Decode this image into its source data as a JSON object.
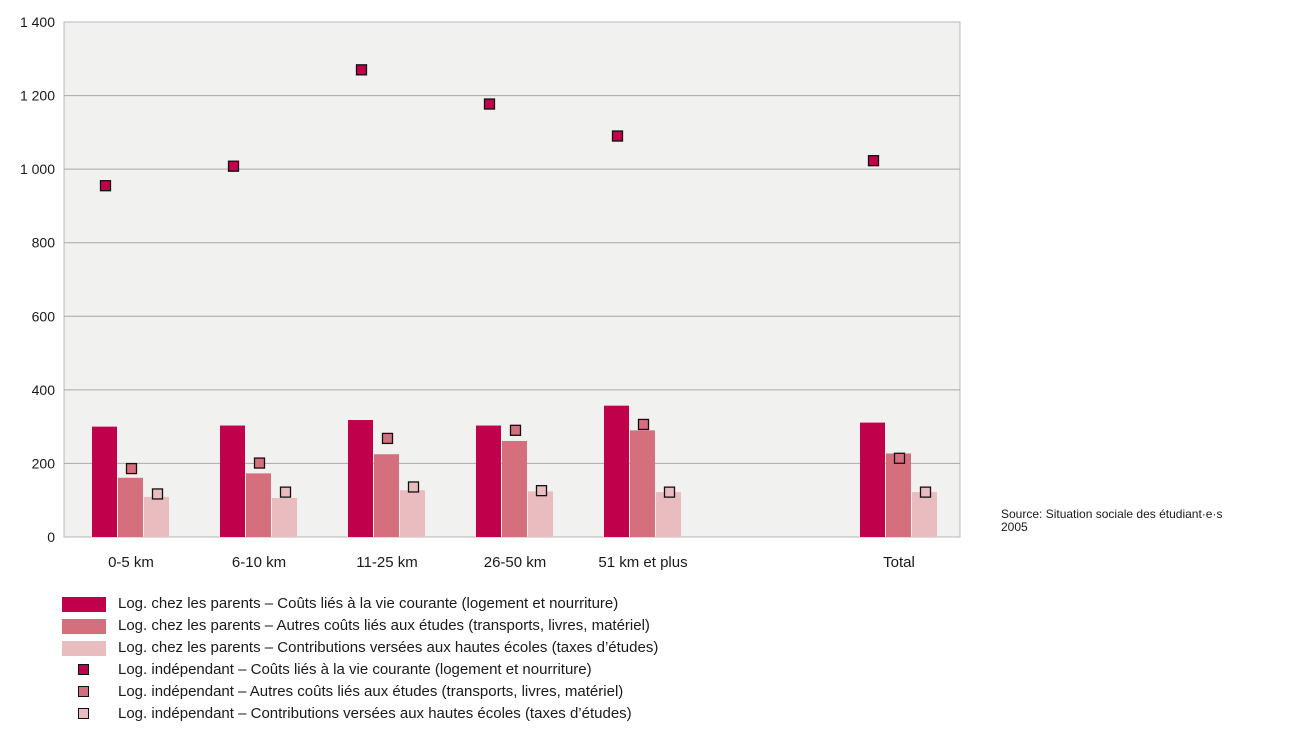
{
  "chart_data": {
    "type": "bar",
    "categories": [
      "0-5 km",
      "6-10 km",
      "11-25 km",
      "26-50 km",
      "51 km et plus",
      "Total"
    ],
    "ylim": [
      0,
      1400
    ],
    "yticks": [
      "0",
      "200",
      "400",
      "600",
      "800",
      "1 000",
      "1 200",
      "1 400"
    ],
    "ytick_values": [
      0,
      200,
      400,
      600,
      800,
      1000,
      1200,
      1400
    ],
    "grid": true,
    "legend_position": "bottom-left",
    "series": [
      {
        "name": "Log. chez les parents  – Coûts liés à la vie courante (logement et nourriture)",
        "kind": "bar",
        "color": "#c0004a",
        "values": [
          300,
          303,
          318,
          303,
          357,
          311
        ]
      },
      {
        "name": "Log. chez les parents – Autres coûts liés aux études (transports, livres, matériel)",
        "kind": "bar",
        "color": "#d4707e",
        "values": [
          161,
          173,
          225,
          261,
          290,
          227
        ]
      },
      {
        "name": "Log. chez les parents – Contributions versées aux hautes écoles (taxes d’études)",
        "kind": "bar",
        "color": "#e9bcc0",
        "values": [
          109,
          106,
          127,
          124,
          122,
          122
        ]
      },
      {
        "name": "Log. indépendant – Coûts liés à la vie courante (logement et nourriture)",
        "kind": "marker",
        "color": "#c0004a",
        "values": [
          955,
          1008,
          1270,
          1177,
          1090,
          1023
        ]
      },
      {
        "name": "Log. indépendant – Autres coûts liés aux études (transports, livres, matériel)",
        "kind": "marker",
        "color": "#d4707e",
        "values": [
          186,
          201,
          268,
          290,
          306,
          214
        ]
      },
      {
        "name": "Log. indépendant – Contributions versées aux hautes écoles (taxes d’études)",
        "kind": "marker",
        "color": "#e9bcc0",
        "values": [
          117,
          122,
          136,
          126,
          122,
          122
        ]
      }
    ]
  },
  "source": {
    "line1": "Source: Situation sociale des étudiant·e·s",
    "line2": "2005"
  }
}
